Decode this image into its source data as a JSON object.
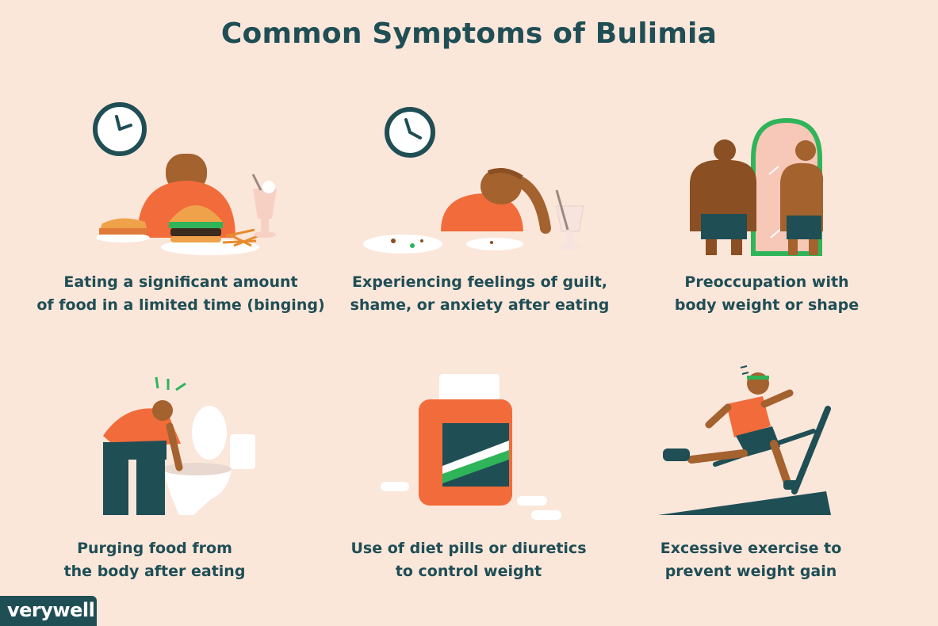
{
  "title": "Common Symptoms of Bulimia",
  "symptoms": [
    {
      "line1": "Eating a significant amount",
      "line2": "of food in a limited time (binging)"
    },
    {
      "line1": "Experiencing feelings of guilt,",
      "line2": "shame, or anxiety after eating"
    },
    {
      "line1": "Preoccupation with",
      "line2": "body weight or shape"
    },
    {
      "line1": "Purging food from",
      "line2": "the body after eating"
    },
    {
      "line1": "Use of diet pills or diuretics",
      "line2": "to control weight"
    },
    {
      "line1": "Excessive exercise to",
      "line2": "prevent weight gain"
    }
  ],
  "brand": {
    "logo": "verywell"
  },
  "colors": {
    "background": "#fbe6da",
    "title": "#1f4e55",
    "accent_orange": "#f26b3a",
    "skin": "#a3622e",
    "green": "#2fb45a"
  }
}
